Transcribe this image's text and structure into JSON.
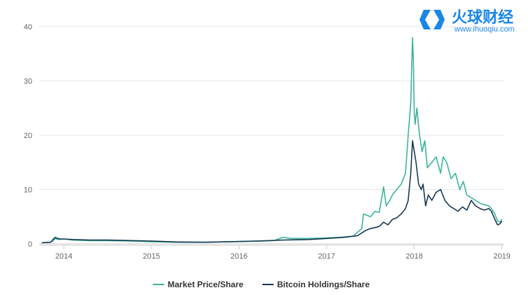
{
  "brand": {
    "name": "火球财经",
    "url": "www.ihuoqiu.com",
    "color": "#1a86e6"
  },
  "chart_data": {
    "type": "line",
    "xlabel": "",
    "ylabel": "",
    "ylim": [
      0,
      40
    ],
    "yticks": [
      0,
      10,
      20,
      30,
      40
    ],
    "xlim": [
      2013.72,
      2019.02
    ],
    "xticks": [
      {
        "value": 2014,
        "label": "2014"
      },
      {
        "value": 2015,
        "label": "2015"
      },
      {
        "value": 2016,
        "label": "2016"
      },
      {
        "value": 2017,
        "label": "2017"
      },
      {
        "value": 2018,
        "label": "2018"
      },
      {
        "value": 2019,
        "label": "2019"
      }
    ],
    "grid": true,
    "legend": "bottom-center",
    "series": [
      {
        "name": "Market Price/Share",
        "color": "#3bb49a",
        "x": [
          2013.75,
          2013.85,
          2013.9,
          2013.95,
          2014.0,
          2014.1,
          2014.3,
          2014.5,
          2014.8,
          2015.0,
          2015.3,
          2015.6,
          2015.9,
          2016.2,
          2016.4,
          2016.5,
          2016.6,
          2016.8,
          2017.0,
          2017.15,
          2017.3,
          2017.4,
          2017.42,
          2017.5,
          2017.55,
          2017.6,
          2017.65,
          2017.68,
          2017.72,
          2017.75,
          2017.8,
          2017.85,
          2017.9,
          2017.93,
          2017.96,
          2017.98,
          2017.99,
          2018.0,
          2018.01,
          2018.03,
          2018.06,
          2018.09,
          2018.12,
          2018.15,
          2018.2,
          2018.25,
          2018.3,
          2018.33,
          2018.37,
          2018.42,
          2018.47,
          2018.52,
          2018.56,
          2018.6,
          2018.65,
          2018.7,
          2018.75,
          2018.8,
          2018.85,
          2018.88,
          2018.92,
          2018.95,
          2018.98,
          2019.0
        ],
        "values": [
          0.2,
          0.3,
          0.9,
          0.8,
          0.9,
          0.7,
          0.6,
          0.6,
          0.5,
          0.4,
          0.3,
          0.3,
          0.4,
          0.5,
          0.6,
          1.2,
          1.0,
          1.0,
          1.1,
          1.2,
          1.4,
          2.8,
          5.5,
          5.0,
          6.0,
          5.8,
          10.5,
          7.0,
          8.0,
          9.0,
          10.0,
          11.0,
          13.0,
          20.0,
          26.0,
          38.0,
          34.0,
          24.0,
          22.0,
          25.0,
          20.0,
          17.0,
          19.0,
          14.0,
          15.0,
          16.0,
          13.0,
          16.0,
          15.0,
          12.0,
          13.0,
          10.0,
          11.5,
          9.0,
          8.5,
          8.0,
          7.5,
          7.2,
          7.0,
          6.5,
          5.5,
          4.2,
          4.0,
          4.5
        ]
      },
      {
        "name": "Bitcoin Holdings/Share",
        "color": "#163a52",
        "x": [
          2013.75,
          2013.85,
          2013.9,
          2013.95,
          2014.0,
          2014.1,
          2014.3,
          2014.5,
          2014.8,
          2015.0,
          2015.3,
          2015.6,
          2015.9,
          2016.2,
          2016.5,
          2016.8,
          2017.0,
          2017.2,
          2017.35,
          2017.45,
          2017.5,
          2017.55,
          2017.6,
          2017.65,
          2017.7,
          2017.75,
          2017.8,
          2017.85,
          2017.9,
          2017.93,
          2017.96,
          2017.98,
          2018.0,
          2018.02,
          2018.05,
          2018.08,
          2018.1,
          2018.13,
          2018.16,
          2018.2,
          2018.25,
          2018.3,
          2018.35,
          2018.4,
          2018.45,
          2018.5,
          2018.55,
          2018.6,
          2018.65,
          2018.7,
          2018.75,
          2018.8,
          2018.85,
          2018.88,
          2018.92,
          2018.95,
          2018.98,
          2019.0
        ],
        "values": [
          0.2,
          0.3,
          1.2,
          0.9,
          0.9,
          0.8,
          0.7,
          0.7,
          0.6,
          0.5,
          0.35,
          0.3,
          0.4,
          0.5,
          0.7,
          0.8,
          1.0,
          1.2,
          1.5,
          2.5,
          2.8,
          3.0,
          3.2,
          4.0,
          3.5,
          4.5,
          4.8,
          5.5,
          6.5,
          8.0,
          13.0,
          19.0,
          17.0,
          15.0,
          11.0,
          10.0,
          11.0,
          7.0,
          9.0,
          8.0,
          9.5,
          10.0,
          8.0,
          7.0,
          6.5,
          6.0,
          6.8,
          6.2,
          8.0,
          7.0,
          6.5,
          6.2,
          6.5,
          6.0,
          4.5,
          3.5,
          3.7,
          4.2
        ]
      }
    ]
  }
}
